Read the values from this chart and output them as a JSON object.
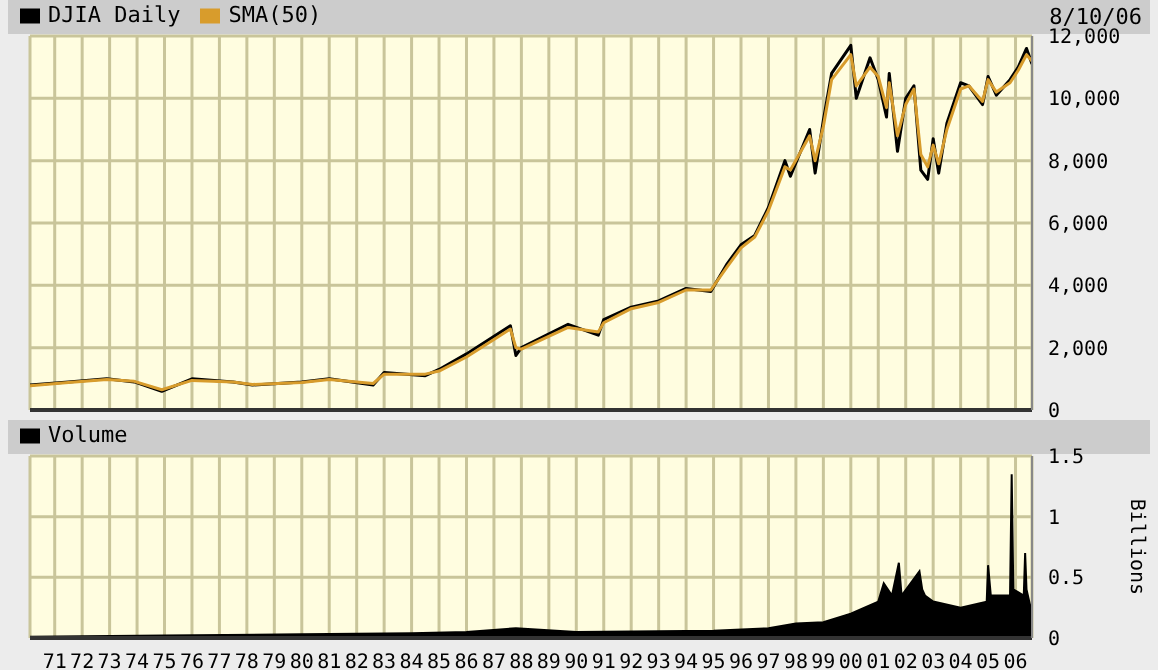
{
  "chart_data": [
    {
      "type": "line",
      "legend": "top left",
      "grid": true,
      "tick_labels": "y",
      "annotations": [
        "8/10/06"
      ],
      "x": [
        1970.1,
        1971.5,
        1972.9,
        1973.9,
        1974.9,
        1976.0,
        1977.5,
        1978.2,
        1980.0,
        1981.0,
        1982.6,
        1983.0,
        1984.5,
        1985.0,
        1986.0,
        1987.6,
        1987.8,
        1988.0,
        1989.7,
        1990.8,
        1991.0,
        1992.0,
        1993.0,
        1994.0,
        1994.9,
        1995.5,
        1996.0,
        1996.5,
        1997.0,
        1997.6,
        1997.8,
        1998.5,
        1998.7,
        1999.0,
        1999.3,
        2000.0,
        2000.2,
        2000.7,
        2001.0,
        2001.3,
        2001.4,
        2001.7,
        2002.0,
        2002.3,
        2002.55,
        2002.8,
        2003.0,
        2003.2,
        2003.5,
        2004.0,
        2004.3,
        2004.8,
        2005.0,
        2005.3,
        2005.8,
        2006.1,
        2006.4,
        2006.6
      ],
      "xticks": [
        {
          "value": 1971,
          "label": null
        },
        {
          "value": 1972,
          "label": null
        },
        {
          "value": 1973,
          "label": null
        },
        {
          "value": 1974,
          "label": null
        },
        {
          "value": 1975,
          "label": null
        },
        {
          "value": 1976,
          "label": null
        },
        {
          "value": 1977,
          "label": null
        },
        {
          "value": 1978,
          "label": null
        },
        {
          "value": 1979,
          "label": null
        },
        {
          "value": 1980,
          "label": null
        },
        {
          "value": 1981,
          "label": null
        },
        {
          "value": 1982,
          "label": null
        },
        {
          "value": 1983,
          "label": null
        },
        {
          "value": 1984,
          "label": null
        },
        {
          "value": 1985,
          "label": null
        },
        {
          "value": 1986,
          "label": null
        },
        {
          "value": 1987,
          "label": null
        },
        {
          "value": 1988,
          "label": null
        },
        {
          "value": 1989,
          "label": null
        },
        {
          "value": 1990,
          "label": null
        },
        {
          "value": 1991,
          "label": null
        },
        {
          "value": 1992,
          "label": null
        },
        {
          "value": 1993,
          "label": null
        },
        {
          "value": 1994,
          "label": null
        },
        {
          "value": 1995,
          "label": null
        },
        {
          "value": 1996,
          "label": null
        },
        {
          "value": 1997,
          "label": null
        },
        {
          "value": 1998,
          "label": null
        },
        {
          "value": 1999,
          "label": null
        },
        {
          "value": 2000,
          "label": null
        },
        {
          "value": 2001,
          "label": null
        },
        {
          "value": 2002,
          "label": null
        },
        {
          "value": 2003,
          "label": null
        },
        {
          "value": 2004,
          "label": null
        },
        {
          "value": 2005,
          "label": null
        },
        {
          "value": 2006,
          "label": null
        }
      ],
      "series": [
        {
          "name": "DJIA Daily",
          "color": "#000000",
          "values": [
            800,
            900,
            1000,
            900,
            600,
            1000,
            900,
            800,
            900,
            1000,
            800,
            1200,
            1100,
            1300,
            1800,
            2700,
            1750,
            2000,
            2750,
            2400,
            2900,
            3300,
            3500,
            3900,
            3800,
            4700,
            5300,
            5600,
            6500,
            8000,
            7500,
            9000,
            7600,
            9300,
            10800,
            11700,
            10000,
            11300,
            10600,
            9400,
            10800,
            8300,
            10000,
            10400,
            7700,
            7400,
            8700,
            7600,
            9200,
            10500,
            10400,
            9800,
            10700,
            10100,
            10600,
            11000,
            11600,
            11100
          ]
        },
        {
          "name": "SMA(50)",
          "color": "#d89c2c",
          "values": [
            780,
            880,
            980,
            920,
            650,
            950,
            900,
            820,
            880,
            980,
            850,
            1150,
            1150,
            1250,
            1700,
            2600,
            2000,
            1950,
            2650,
            2500,
            2800,
            3250,
            3450,
            3850,
            3850,
            4600,
            5200,
            5550,
            6400,
            7800,
            7700,
            8800,
            8000,
            9100,
            10600,
            11400,
            10400,
            11000,
            10700,
            9700,
            10500,
            8800,
            9800,
            10300,
            8200,
            7800,
            8500,
            7900,
            9000,
            10300,
            10400,
            9900,
            10600,
            10200,
            10500,
            10900,
            11400,
            11200
          ]
        }
      ],
      "xlim": [
        1970.1,
        2006.6
      ],
      "ylim": [
        0,
        12000
      ],
      "yticks": [
        0,
        {
          "value": 2000,
          "label": "2,000"
        },
        {
          "value": 4000,
          "label": "4,000"
        },
        {
          "value": 6000,
          "label": "6,000"
        },
        {
          "value": 8000,
          "label": "8,000"
        },
        {
          "value": 10000,
          "label": "10,000"
        },
        {
          "value": 12000,
          "label": "12,000"
        }
      ]
    },
    {
      "type": "area",
      "legend": "top left",
      "grid": true,
      "ylabel": "Billions",
      "x": [
        1970.1,
        1975.0,
        1980.0,
        1984.0,
        1986.0,
        1987.8,
        1990.0,
        1995.0,
        1997.0,
        1998.0,
        1999.0,
        2000.0,
        2000.5,
        2001.0,
        2001.2,
        2001.5,
        2001.75,
        2001.85,
        2002.5,
        2002.6,
        2002.7,
        2003.0,
        2004.0,
        2004.95,
        2005.0,
        2005.1,
        2005.8,
        2005.86,
        2005.92,
        2006.3,
        2006.35,
        2006.4,
        2006.6
      ],
      "series": [
        {
          "name": "Volume",
          "color": "#000000",
          "values": [
            0.01,
            0.02,
            0.03,
            0.04,
            0.05,
            0.08,
            0.05,
            0.06,
            0.08,
            0.12,
            0.13,
            0.2,
            0.25,
            0.3,
            0.45,
            0.35,
            0.62,
            0.35,
            0.55,
            0.4,
            0.35,
            0.3,
            0.25,
            0.3,
            0.6,
            0.35,
            0.35,
            1.35,
            0.4,
            0.35,
            0.7,
            0.4,
            0.2
          ]
        }
      ],
      "xlim": [
        1970.1,
        2006.6
      ],
      "xticks": [
        {
          "value": 1971,
          "label": "71"
        },
        {
          "value": 1972,
          "label": "72"
        },
        {
          "value": 1973,
          "label": "73"
        },
        {
          "value": 1974,
          "label": "74"
        },
        {
          "value": 1975,
          "label": "75"
        },
        {
          "value": 1976,
          "label": "76"
        },
        {
          "value": 1977,
          "label": "77"
        },
        {
          "value": 1978,
          "label": "78"
        },
        {
          "value": 1979,
          "label": "79"
        },
        {
          "value": 1980,
          "label": "80"
        },
        {
          "value": 1981,
          "label": "81"
        },
        {
          "value": 1982,
          "label": "82"
        },
        {
          "value": 1983,
          "label": "83"
        },
        {
          "value": 1984,
          "label": "84"
        },
        {
          "value": 1985,
          "label": "85"
        },
        {
          "value": 1986,
          "label": "86"
        },
        {
          "value": 1987,
          "label": "87"
        },
        {
          "value": 1988,
          "label": "88"
        },
        {
          "value": 1989,
          "label": "89"
        },
        {
          "value": 1990,
          "label": "90"
        },
        {
          "value": 1991,
          "label": "91"
        },
        {
          "value": 1992,
          "label": "92"
        },
        {
          "value": 1993,
          "label": "93"
        },
        {
          "value": 1994,
          "label": "94"
        },
        {
          "value": 1995,
          "label": "95"
        },
        {
          "value": 1996,
          "label": "96"
        },
        {
          "value": 1997,
          "label": "97"
        },
        {
          "value": 1998,
          "label": "98"
        },
        {
          "value": 1999,
          "label": "99"
        },
        {
          "value": 2000,
          "label": "00"
        },
        {
          "value": 2001,
          "label": "01"
        },
        {
          "value": 2002,
          "label": "02"
        },
        {
          "value": 2003,
          "label": "03"
        },
        {
          "value": 2004,
          "label": "04"
        },
        {
          "value": 2005,
          "label": "05"
        },
        {
          "value": 2006,
          "label": "06"
        }
      ],
      "ylim": [
        0,
        1.5
      ],
      "yticks": [
        0,
        0.5,
        1,
        1.5
      ]
    }
  ]
}
